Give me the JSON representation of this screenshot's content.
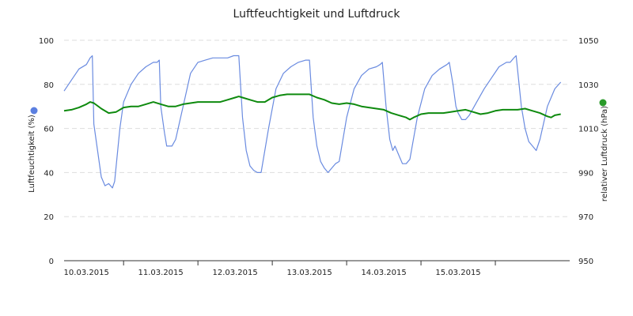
{
  "chart_data": {
    "type": "line",
    "title": "Luftfeuchtigkeit und Luftdruck",
    "x_tick_labels": [
      "10.03.2015",
      "11.03.2015",
      "12.03.2015",
      "13.03.2015",
      "14.03.2015",
      "15.03.2015"
    ],
    "x_range_days": [
      -0.3,
      6.5
    ],
    "y_left": {
      "label": "Luftfeuchtigkeit (%)",
      "range": [
        0,
        100
      ],
      "ticks": [
        0,
        20,
        40,
        60,
        80,
        100
      ],
      "legend_color": "#5b7fe0"
    },
    "y_right": {
      "label": "relativer Luftdruck (hPa)",
      "range": [
        950,
        1050
      ],
      "ticks": [
        950,
        970,
        990,
        1010,
        1030,
        1050
      ],
      "legend_color": "#2a9a2a"
    },
    "grid": true,
    "series": [
      {
        "axis": "left",
        "color": "#6a8be0",
        "points": [
          [
            -0.3,
            77
          ],
          [
            -0.2,
            82
          ],
          [
            -0.1,
            87
          ],
          [
            0.0,
            89
          ],
          [
            0.05,
            92
          ],
          [
            0.08,
            93
          ],
          [
            0.1,
            62
          ],
          [
            0.15,
            50
          ],
          [
            0.2,
            38
          ],
          [
            0.25,
            34
          ],
          [
            0.3,
            35
          ],
          [
            0.35,
            33
          ],
          [
            0.38,
            36
          ],
          [
            0.45,
            60
          ],
          [
            0.5,
            72
          ],
          [
            0.6,
            80
          ],
          [
            0.7,
            85
          ],
          [
            0.8,
            88
          ],
          [
            0.9,
            90
          ],
          [
            0.95,
            90
          ],
          [
            0.98,
            91
          ],
          [
            1.0,
            70
          ],
          [
            1.05,
            58
          ],
          [
            1.08,
            52
          ],
          [
            1.15,
            52
          ],
          [
            1.2,
            55
          ],
          [
            1.3,
            70
          ],
          [
            1.4,
            85
          ],
          [
            1.5,
            90
          ],
          [
            1.6,
            91
          ],
          [
            1.7,
            92
          ],
          [
            1.8,
            92
          ],
          [
            1.9,
            92
          ],
          [
            1.98,
            93
          ],
          [
            2.05,
            93
          ],
          [
            2.1,
            65
          ],
          [
            2.15,
            50
          ],
          [
            2.2,
            43
          ],
          [
            2.25,
            41
          ],
          [
            2.3,
            40
          ],
          [
            2.35,
            40
          ],
          [
            2.45,
            60
          ],
          [
            2.55,
            78
          ],
          [
            2.65,
            85
          ],
          [
            2.75,
            88
          ],
          [
            2.85,
            90
          ],
          [
            2.95,
            91
          ],
          [
            3.0,
            91
          ],
          [
            3.05,
            65
          ],
          [
            3.1,
            52
          ],
          [
            3.15,
            45
          ],
          [
            3.2,
            42
          ],
          [
            3.25,
            40
          ],
          [
            3.3,
            42
          ],
          [
            3.35,
            44
          ],
          [
            3.4,
            45
          ],
          [
            3.5,
            65
          ],
          [
            3.6,
            78
          ],
          [
            3.7,
            84
          ],
          [
            3.8,
            87
          ],
          [
            3.9,
            88
          ],
          [
            3.95,
            89
          ],
          [
            3.98,
            90
          ],
          [
            4.03,
            70
          ],
          [
            4.08,
            55
          ],
          [
            4.12,
            50
          ],
          [
            4.15,
            52
          ],
          [
            4.2,
            48
          ],
          [
            4.25,
            44
          ],
          [
            4.3,
            44
          ],
          [
            4.35,
            46
          ],
          [
            4.45,
            65
          ],
          [
            4.55,
            78
          ],
          [
            4.65,
            84
          ],
          [
            4.75,
            87
          ],
          [
            4.85,
            89
          ],
          [
            4.88,
            90
          ],
          [
            4.93,
            80
          ],
          [
            4.97,
            70
          ],
          [
            5.0,
            67
          ],
          [
            5.05,
            64
          ],
          [
            5.1,
            64
          ],
          [
            5.15,
            66
          ],
          [
            5.25,
            72
          ],
          [
            5.35,
            78
          ],
          [
            5.45,
            83
          ],
          [
            5.55,
            88
          ],
          [
            5.65,
            90
          ],
          [
            5.7,
            90
          ],
          [
            5.75,
            92
          ],
          [
            5.78,
            93
          ],
          [
            5.85,
            70
          ],
          [
            5.9,
            60
          ],
          [
            5.95,
            54
          ],
          [
            6.0,
            52
          ],
          [
            6.05,
            50
          ],
          [
            6.1,
            55
          ],
          [
            6.2,
            70
          ],
          [
            6.3,
            78
          ],
          [
            6.38,
            81
          ]
        ]
      },
      {
        "axis": "right",
        "color": "#0e8a0e",
        "points": [
          [
            -0.3,
            1018
          ],
          [
            -0.2,
            1018.5
          ],
          [
            -0.1,
            1019.5
          ],
          [
            0.0,
            1021
          ],
          [
            0.05,
            1022
          ],
          [
            0.1,
            1021.5
          ],
          [
            0.2,
            1019
          ],
          [
            0.3,
            1017
          ],
          [
            0.4,
            1017.5
          ],
          [
            0.5,
            1019.5
          ],
          [
            0.6,
            1020
          ],
          [
            0.7,
            1020
          ],
          [
            0.8,
            1021
          ],
          [
            0.9,
            1022
          ],
          [
            1.0,
            1021
          ],
          [
            1.1,
            1020
          ],
          [
            1.2,
            1020
          ],
          [
            1.3,
            1021
          ],
          [
            1.4,
            1021.5
          ],
          [
            1.5,
            1022
          ],
          [
            1.6,
            1022
          ],
          [
            1.7,
            1022
          ],
          [
            1.8,
            1022
          ],
          [
            1.9,
            1023
          ],
          [
            2.0,
            1024
          ],
          [
            2.05,
            1024.5
          ],
          [
            2.1,
            1024
          ],
          [
            2.2,
            1023
          ],
          [
            2.3,
            1022
          ],
          [
            2.4,
            1022
          ],
          [
            2.5,
            1024
          ],
          [
            2.6,
            1025
          ],
          [
            2.7,
            1025.5
          ],
          [
            2.8,
            1025.5
          ],
          [
            2.9,
            1025.5
          ],
          [
            3.0,
            1025.5
          ],
          [
            3.1,
            1024
          ],
          [
            3.2,
            1023
          ],
          [
            3.3,
            1021.5
          ],
          [
            3.4,
            1021
          ],
          [
            3.5,
            1021.5
          ],
          [
            3.6,
            1021
          ],
          [
            3.7,
            1020
          ],
          [
            3.8,
            1019.5
          ],
          [
            3.9,
            1019
          ],
          [
            4.0,
            1018.5
          ],
          [
            4.1,
            1017
          ],
          [
            4.2,
            1016
          ],
          [
            4.3,
            1015
          ],
          [
            4.35,
            1014
          ],
          [
            4.4,
            1015
          ],
          [
            4.5,
            1016.5
          ],
          [
            4.6,
            1017
          ],
          [
            4.7,
            1017
          ],
          [
            4.8,
            1017
          ],
          [
            4.9,
            1017.5
          ],
          [
            5.0,
            1018
          ],
          [
            5.1,
            1018.5
          ],
          [
            5.2,
            1017.5
          ],
          [
            5.3,
            1016.5
          ],
          [
            5.4,
            1017
          ],
          [
            5.5,
            1018
          ],
          [
            5.6,
            1018.5
          ],
          [
            5.7,
            1018.5
          ],
          [
            5.8,
            1018.5
          ],
          [
            5.9,
            1019
          ],
          [
            6.0,
            1018
          ],
          [
            6.1,
            1017
          ],
          [
            6.2,
            1015.5
          ],
          [
            6.25,
            1015
          ],
          [
            6.3,
            1016
          ],
          [
            6.38,
            1016.5
          ]
        ]
      }
    ]
  }
}
